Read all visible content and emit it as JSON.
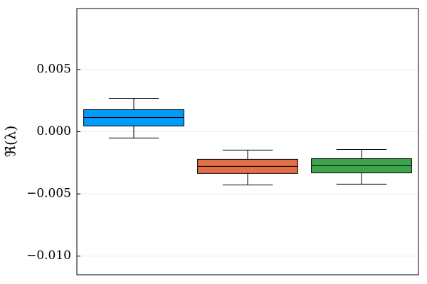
{
  "chart_data": {
    "type": "box",
    "ylabel": "ℜ(λ)",
    "ylim": [
      -0.0115,
      0.0099
    ],
    "yticks": [
      0.005,
      {
        "value": 0,
        "label": "0.000"
      },
      {
        "value": -0.005,
        "label": "−0.005"
      },
      {
        "value": -0.01,
        "label": "−0.010"
      }
    ],
    "grid": true,
    "series": [
      {
        "color": "#009afa",
        "whislo": -0.00051,
        "q1": 0.00046,
        "med": 0.00114,
        "q3": 0.00177,
        "whishi": 0.00268
      },
      {
        "color": "#e26f46",
        "whislo": -0.00428,
        "q1": -0.00336,
        "med": -0.00279,
        "q3": -0.00222,
        "whishi": -0.00148
      },
      {
        "color": "#3da44d",
        "whislo": -0.00422,
        "q1": -0.00331,
        "med": -0.00274,
        "q3": -0.00217,
        "whishi": -0.00143
      }
    ]
  }
}
